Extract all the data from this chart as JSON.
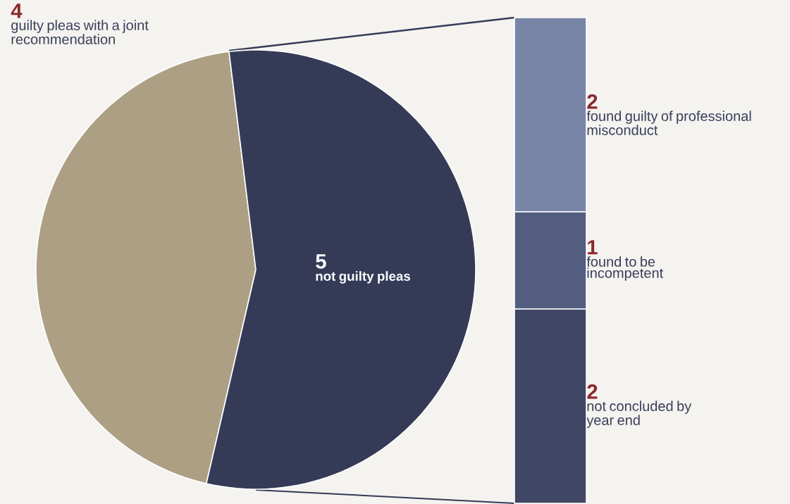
{
  "chart_data": [
    {
      "type": "pie",
      "categories": [
        "guilty pleas with a joint recommendation",
        "not guilty pleas"
      ],
      "values": [
        4,
        5
      ],
      "colors": [
        "#ac9f83",
        "#353b57"
      ],
      "data_labels": true
    },
    {
      "type": "bar",
      "stacked": true,
      "categories": [
        null
      ],
      "data_labels": true,
      "series": [
        {
          "name": "not concluded by year end",
          "color": "#3f4764",
          "values": [
            2
          ]
        },
        {
          "name": "found to be incompetent",
          "color": "#525d80",
          "values": [
            1
          ]
        },
        {
          "name": "found guilty of professional misconduct",
          "color": "#7985a6",
          "values": [
            2
          ]
        }
      ]
    }
  ]
}
